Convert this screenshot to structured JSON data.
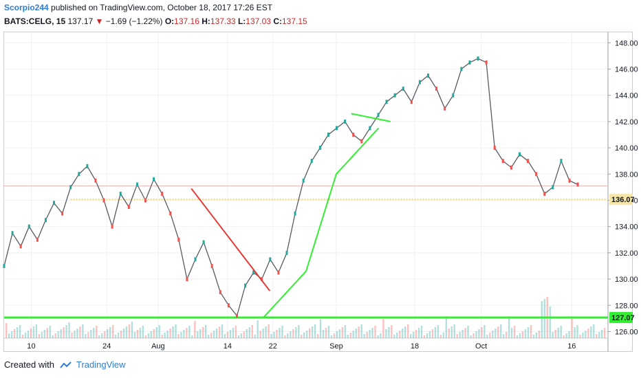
{
  "header": {
    "user": "Scorpio244",
    "text": " published on TradingView.com, October 18, 2017 17:26 EST"
  },
  "quote": {
    "symbol": "BATS:CELG, 15",
    "last": "137.17",
    "arrow": "▼",
    "change": "−1.69 (−1.22%)",
    "o_label": "O:",
    "o": "137.16",
    "h_label": "H:",
    "h": "137.33",
    "l_label": "L:",
    "l": "137.03",
    "c_label": "C:",
    "c": "137.15"
  },
  "footer": {
    "created": "Created with",
    "brand": "TradingView"
  },
  "colors": {
    "up": "#26a69a",
    "down": "#ef5350",
    "green_line": "#33ee33",
    "red_line": "#e53935",
    "dotted": "#f5d76e",
    "hline": "#f2b8b8"
  },
  "chart_data": {
    "type": "line",
    "x_ticks": [
      "10",
      "24",
      "Aug",
      "14",
      "22",
      "Sep",
      "18",
      "Oct",
      "16"
    ],
    "y_ticks": [
      "148.00",
      "146.00",
      "144.00",
      "142.00",
      "140.00",
      "138.00",
      "136.00",
      "134.00",
      "132.00",
      "130.00",
      "128.00",
      "126.00"
    ],
    "ylim": [
      125.5,
      148.8
    ],
    "price_labels": [
      {
        "value": 136.07,
        "text": "136.07"
      },
      {
        "value": 127.07,
        "text": "127.07"
      }
    ],
    "series": [
      {
        "values": [
          131.0,
          133.5,
          132.5,
          134.0,
          133.0,
          134.5,
          135.8,
          135.0,
          137.0,
          138.0,
          138.6,
          137.5,
          136.0,
          134.0,
          136.5,
          135.5,
          137.2,
          136.0,
          137.6,
          136.5,
          135.0,
          133.0,
          130.0,
          131.5,
          132.8,
          131.0,
          129.0,
          128.0,
          127.2,
          129.5,
          130.5,
          130.0,
          131.5,
          130.5,
          132.0,
          135.0,
          137.5,
          139.0,
          140.0,
          141.0,
          141.5,
          142.0,
          141.0,
          140.5,
          141.5,
          142.5,
          143.5,
          144.0,
          144.5,
          143.5,
          145.0,
          145.5,
          144.5,
          143.0,
          144.0,
          146.0,
          146.5,
          146.8,
          146.5,
          140.0,
          139.0,
          138.5,
          139.5,
          139.0,
          138.0,
          136.5,
          137.0,
          139.0,
          137.5,
          137.2
        ],
        "x_start": 0,
        "x_end": 1
      }
    ],
    "trendlines": [
      {
        "color": "red",
        "points": [
          [
            0.31,
            136.9
          ],
          [
            0.44,
            129.1
          ]
        ]
      },
      {
        "color": "green",
        "points": [
          [
            0.43,
            127.1
          ],
          [
            0.5,
            130.6
          ],
          [
            0.55,
            138.0
          ],
          [
            0.62,
            141.5
          ]
        ]
      },
      {
        "color": "green",
        "points": [
          [
            0.575,
            142.6
          ],
          [
            0.64,
            142.0
          ]
        ]
      }
    ],
    "hlines": [
      {
        "value": 137.1,
        "style": "solid-thin"
      },
      {
        "value": 136.07,
        "style": "dotted"
      },
      {
        "value": 127.07,
        "style": "solid-thick"
      }
    ]
  }
}
